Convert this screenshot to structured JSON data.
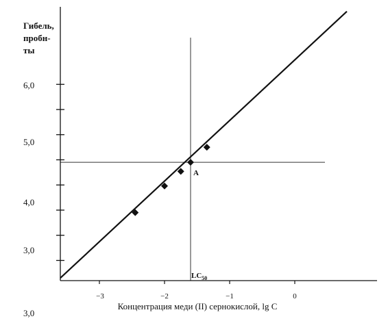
{
  "chart_data": {
    "type": "line",
    "title": "",
    "ylabel_lines": [
      "Гибель,",
      "пробн-",
      "ты"
    ],
    "xlabel": "Концентрация меди (II) сернокислой, lg C",
    "x_ticks": [
      -3,
      -2,
      -1,
      0
    ],
    "x_tick_labels": [
      "−3",
      "−2",
      "−1",
      "0"
    ],
    "y_ticks": [
      3.0,
      4.0,
      5.0,
      6.0
    ],
    "y_tick_labels": [
      "3,0",
      "4,0",
      "5,0",
      "6,0"
    ],
    "y_minor_ticks": [
      3.5,
      4.5,
      5.5,
      6.5
    ],
    "bottom_left_label": "3,0",
    "xlim": [
      -3.6,
      1.3
    ],
    "ylim": [
      2.65,
      7.1
    ],
    "series": [
      {
        "points": [
          {
            "x": -2.45,
            "y": 3.95
          },
          {
            "x": -2.0,
            "y": 4.48
          },
          {
            "x": -1.75,
            "y": 4.77
          },
          {
            "x": -1.6,
            "y": 4.95
          },
          {
            "x": -1.35,
            "y": 5.25
          }
        ],
        "fit_line": {
          "x_start": -3.6,
          "y_start": 2.65,
          "x_end": 0.8,
          "y_end": 7.95
        }
      }
    ],
    "reference_lines": {
      "x_value": -1.6,
      "y_value": 4.95
    },
    "annotations": {
      "point_label": "A",
      "lc_label": "LC",
      "lc_subscript": "50"
    },
    "colors": {
      "line": "#111111",
      "marker": "#111111",
      "axis": "#111111",
      "grid": "#333333"
    }
  }
}
